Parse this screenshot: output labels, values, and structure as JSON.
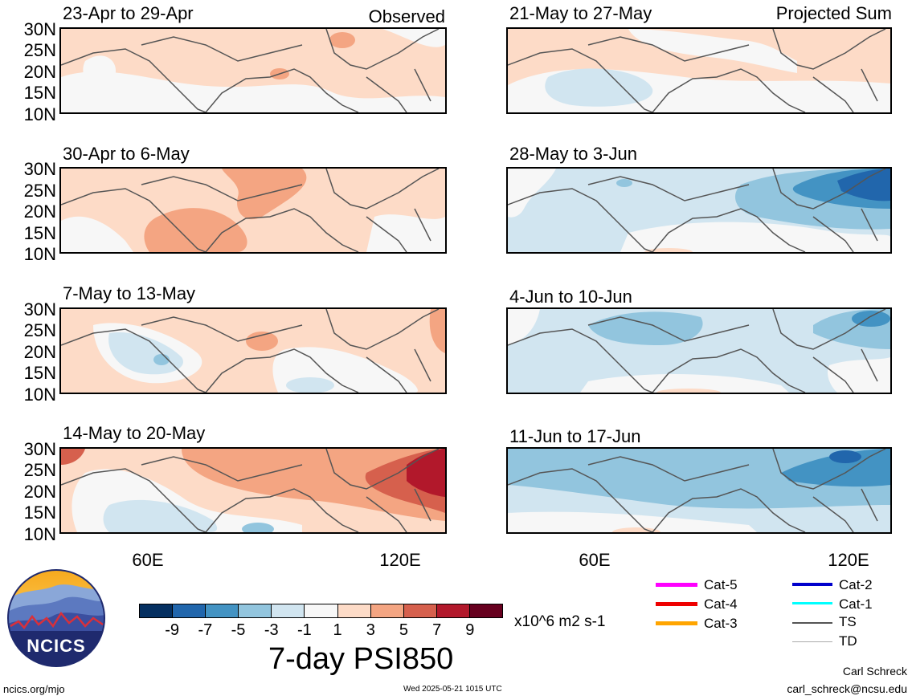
{
  "header": {
    "observed_label": "Observed",
    "projected_label": "Projected Sum"
  },
  "panels": [
    {
      "title": "23-Apr to 29-Apr"
    },
    {
      "title": "30-Apr to 6-May"
    },
    {
      "title": "7-May to 13-May"
    },
    {
      "title": "14-May to 20-May"
    },
    {
      "title": "21-May to 27-May"
    },
    {
      "title": "28-May to 3-Jun"
    },
    {
      "title": "4-Jun to 10-Jun"
    },
    {
      "title": "11-Jun to 17-Jun"
    }
  ],
  "lat_labels": [
    "30N",
    "25N",
    "20N",
    "15N",
    "10N"
  ],
  "lon_labels": [
    "60E",
    "120E"
  ],
  "colorbar": {
    "title": "7-day PSI850",
    "units": "x10^6 m2 s-1",
    "ticks": [
      "-9",
      "-7",
      "-5",
      "-3",
      "-1",
      "1",
      "3",
      "5",
      "7",
      "9"
    ],
    "colors": [
      "#053061",
      "#2166ac",
      "#4393c3",
      "#92c5de",
      "#d1e5f0",
      "#f7f7f7",
      "#fddbc7",
      "#f4a582",
      "#d6604d",
      "#b2182b",
      "#67001f"
    ]
  },
  "storm_legend": [
    {
      "label": "Cat-5",
      "color": "#ff00ff"
    },
    {
      "label": "Cat-4",
      "color": "#ee0000"
    },
    {
      "label": "Cat-3",
      "color": "#ffa500"
    },
    {
      "label": "Cat-2",
      "color": "#0000cc"
    },
    {
      "label": "Cat-1",
      "color": "#00ffff"
    },
    {
      "label": "TS",
      "color": "#555555"
    },
    {
      "label": "TD",
      "color": "#aaaaaa"
    }
  ],
  "logo": {
    "text": "NCICS"
  },
  "footer": {
    "site": "ncics.org/mjo",
    "timestamp": "Wed 2025-05-21 1015 UTC",
    "author": "Carl Schreck",
    "email": "carl_schreck@ncsu.edu"
  }
}
